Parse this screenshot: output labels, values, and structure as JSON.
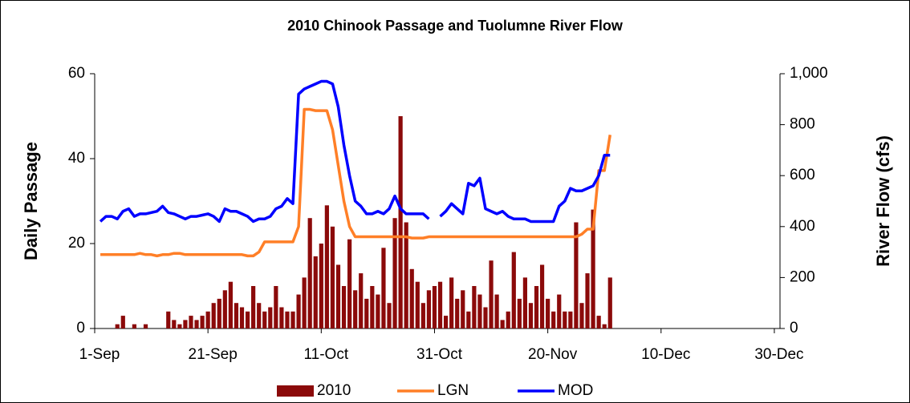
{
  "chart_data": {
    "type": "bar-line",
    "title": "2010 Chinook Passage and Tuolumne River Flow",
    "ylabel": "Daily Passage",
    "y2label": "River Flow (cfs)",
    "xlim": [
      0,
      121
    ],
    "xticks": [
      {
        "value": 0,
        "label": "1-Sep"
      },
      {
        "value": 20,
        "label": "21-Sep"
      },
      {
        "value": 40,
        "label": "11-Oct"
      },
      {
        "value": 60,
        "label": "31-Oct"
      },
      {
        "value": 80,
        "label": "20-Nov"
      },
      {
        "value": 100,
        "label": "10-Dec"
      },
      {
        "value": 120,
        "label": "30-Dec"
      }
    ],
    "ylim": [
      0,
      60
    ],
    "yticks": [
      0,
      20,
      40,
      60
    ],
    "y2lim": [
      0,
      1000
    ],
    "y2ticks": [
      0,
      200,
      400,
      600,
      800,
      {
        "value": 1000,
        "label": "1,000"
      }
    ],
    "legend": "bottom",
    "x": [
      1,
      2,
      3,
      4,
      5,
      6,
      7,
      8,
      9,
      10,
      11,
      12,
      13,
      14,
      15,
      16,
      17,
      18,
      19,
      20,
      21,
      22,
      23,
      24,
      25,
      26,
      27,
      28,
      29,
      30,
      31,
      32,
      33,
      34,
      35,
      36,
      37,
      38,
      39,
      40,
      41,
      42,
      43,
      44,
      45,
      46,
      47,
      48,
      49,
      50,
      51,
      52,
      53,
      54,
      55,
      56,
      57,
      58,
      59,
      60,
      61,
      62,
      63,
      64,
      65,
      66,
      67,
      68,
      69,
      70,
      71,
      72,
      73,
      74,
      75,
      76,
      77,
      78,
      79,
      80,
      81,
      82,
      83,
      84,
      85,
      86,
      87,
      88,
      89,
      90,
      91
    ],
    "series": [
      {
        "name": "2010",
        "kind": "bar",
        "color": "#8b0a0a",
        "values": [
          0,
          0,
          0,
          1,
          3,
          0,
          1,
          0,
          1,
          0,
          0,
          0,
          4,
          2,
          1,
          2,
          3,
          2,
          3,
          4,
          6,
          7,
          9,
          11,
          6,
          5,
          4,
          10,
          6,
          4,
          5,
          10,
          5,
          4,
          4,
          8,
          12,
          26,
          17,
          20,
          29,
          24,
          15,
          10,
          21,
          9,
          13,
          7,
          10,
          8,
          19,
          6,
          26,
          50,
          25,
          14,
          11,
          6,
          9,
          10,
          11,
          3,
          12,
          7,
          9,
          4,
          10,
          8,
          5,
          16,
          8,
          2,
          4,
          18,
          7,
          12,
          6,
          10,
          15,
          7,
          4,
          8,
          4,
          4,
          25,
          6,
          13,
          28,
          3,
          1,
          12
        ]
      },
      {
        "name": "LGN",
        "kind": "line",
        "axis": "y2",
        "color": "#ff7f27",
        "values": [
          290,
          290,
          290,
          290,
          290,
          290,
          290,
          295,
          290,
          290,
          285,
          290,
          290,
          295,
          295,
          290,
          290,
          290,
          290,
          290,
          290,
          290,
          290,
          290,
          290,
          290,
          285,
          285,
          300,
          340,
          340,
          340,
          340,
          340,
          340,
          400,
          860,
          860,
          855,
          855,
          855,
          780,
          640,
          500,
          400,
          360,
          360,
          360,
          360,
          360,
          360,
          360,
          360,
          360,
          360,
          355,
          355,
          355,
          360,
          360,
          360,
          360,
          360,
          360,
          360,
          360,
          360,
          360,
          360,
          360,
          360,
          360,
          360,
          360,
          360,
          360,
          360,
          360,
          360,
          360,
          360,
          360,
          360,
          360,
          360,
          370,
          390,
          390,
          620,
          620,
          760
        ]
      },
      {
        "name": "MOD",
        "kind": "line",
        "axis": "y2",
        "color": "#0000ff",
        "values": [
          420,
          440,
          440,
          430,
          460,
          470,
          440,
          450,
          450,
          455,
          460,
          480,
          455,
          450,
          440,
          430,
          440,
          440,
          445,
          450,
          440,
          420,
          470,
          460,
          460,
          450,
          440,
          420,
          430,
          430,
          440,
          470,
          480,
          510,
          490,
          920,
          940,
          950,
          960,
          970,
          970,
          960,
          870,
          720,
          600,
          500,
          480,
          450,
          450,
          460,
          450,
          470,
          520,
          470,
          450,
          450,
          450,
          450,
          430,
          null,
          440,
          460,
          490,
          470,
          450,
          570,
          560,
          590,
          470,
          460,
          450,
          460,
          440,
          430,
          430,
          430,
          420,
          420,
          420,
          420,
          420,
          480,
          500,
          550,
          540,
          540,
          550,
          560,
          600,
          680,
          680
        ]
      }
    ]
  }
}
